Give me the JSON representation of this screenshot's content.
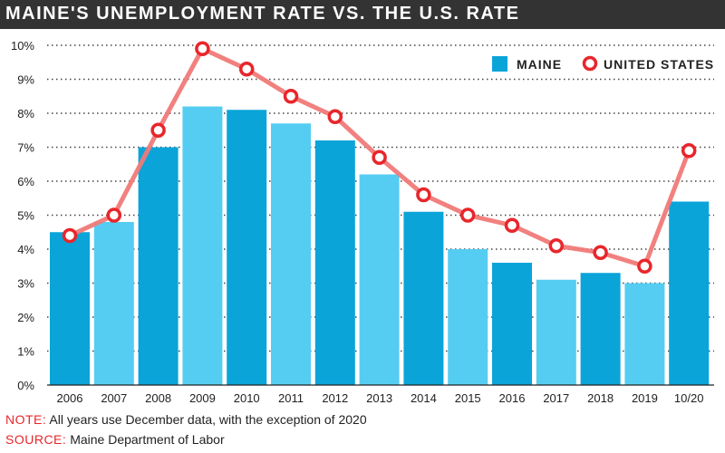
{
  "title": "MAINE'S UNEMPLOYMENT RATE VS. THE U.S. RATE",
  "note": {
    "label": "NOTE:",
    "text": "All years use December data, with the exception of 2020"
  },
  "source": {
    "label": "SOURCE:",
    "text": "Maine Department of Labor"
  },
  "colors": {
    "maine_dark": "#0aa4d9",
    "maine_light": "#55cdf2",
    "us_line": "#f07a78",
    "us_marker": "#e8262b",
    "title_bg": "#333333"
  },
  "chart_data": {
    "type": "bar",
    "categories": [
      "2006",
      "2007",
      "2008",
      "2009",
      "2010",
      "2011",
      "2012",
      "2013",
      "2014",
      "2015",
      "2016",
      "2017",
      "2018",
      "2019",
      "10/20"
    ],
    "series": [
      {
        "name": "MAINE",
        "type": "bar",
        "values": [
          4.5,
          4.8,
          7.0,
          8.2,
          8.1,
          7.7,
          7.2,
          6.2,
          5.1,
          4.0,
          3.6,
          3.1,
          3.3,
          3.0,
          5.4
        ]
      },
      {
        "name": "UNITED STATES",
        "type": "line",
        "values": [
          4.4,
          5.0,
          7.5,
          9.9,
          9.3,
          8.5,
          7.9,
          6.7,
          5.6,
          5.0,
          4.7,
          4.1,
          3.9,
          3.5,
          6.9
        ]
      }
    ],
    "y_ticks": [
      "0%",
      "1%",
      "2%",
      "3%",
      "4%",
      "5%",
      "6%",
      "7%",
      "8%",
      "9%",
      "10%"
    ],
    "ylim": [
      0,
      10
    ],
    "grid": "horizontal dotted",
    "legend_position": "top-right"
  }
}
